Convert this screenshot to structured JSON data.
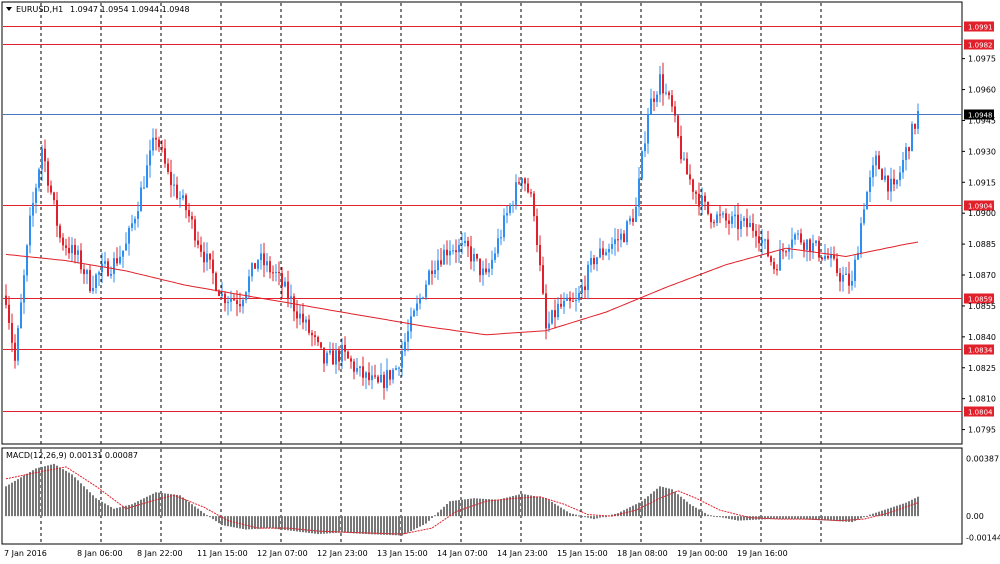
{
  "header": {
    "symbol_title": "EURUSD,H1",
    "ohlc": "1.0947 1.0954 1.0944 1.0948"
  },
  "macd_header": {
    "label": "MACD(12,26,9) 0.00131 0.00087"
  },
  "colors": {
    "bull": "#2f8ff0",
    "bear": "#e0202a",
    "ma": "#e0202a",
    "level": "#e0202a",
    "price_line": "#4a78c0",
    "macd_hist": "#777777",
    "macd_signal": "#e0202a",
    "grid": "#000000"
  },
  "chart_data": [
    {
      "type": "candlestick",
      "title": "",
      "ylim": [
        1.0788,
        1.1002
      ],
      "yticks": [
        "1.0975",
        "1.0960",
        "1.0945",
        "1.0930",
        "1.0915",
        "1.0900",
        "1.0885",
        "1.0870",
        "1.0855",
        "1.0840",
        "1.0825",
        "1.0810",
        "1.0795"
      ],
      "xticks": [
        "7 Jan 2016",
        "8 Jan 06:00",
        "8 Jan 22:00",
        "11 Jan 15:00",
        "12 Jan 07:00",
        "12 Jan 23:00",
        "13 Jan 15:00",
        "14 Jan 07:00",
        "14 Jan 23:00",
        "15 Jan 15:00",
        "18 Jan 08:00",
        "19 Jan 00:00",
        "19 Jan 16:00"
      ],
      "levels": [
        {
          "label": "1.0991",
          "value": 1.0991
        },
        {
          "label": "1.0982",
          "value": 1.0982
        },
        {
          "label": "1.0904",
          "value": 1.0904
        },
        {
          "label": "1.0859",
          "value": 1.0859
        },
        {
          "label": "1.0834",
          "value": 1.0834
        },
        {
          "label": "1.0804",
          "value": 1.0804
        }
      ],
      "current_price": {
        "label": "1.0948",
        "value": 1.0948
      },
      "close_path": [
        [
          0,
          1.086
        ],
        [
          3,
          1.0828
        ],
        [
          8,
          1.0895
        ],
        [
          12,
          1.0932
        ],
        [
          18,
          1.0888
        ],
        [
          24,
          1.0878
        ],
        [
          28,
          1.0866
        ],
        [
          32,
          1.0872
        ],
        [
          36,
          1.0876
        ],
        [
          40,
          1.0884
        ],
        [
          44,
          1.0905
        ],
        [
          50,
          1.0938
        ],
        [
          54,
          1.0918
        ],
        [
          60,
          1.0902
        ],
        [
          66,
          1.088
        ],
        [
          72,
          1.086
        ],
        [
          78,
          1.0858
        ],
        [
          84,
          1.0878
        ],
        [
          90,
          1.087
        ],
        [
          96,
          1.0855
        ],
        [
          102,
          1.084
        ],
        [
          106,
          1.0828
        ],
        [
          112,
          1.0832
        ],
        [
          118,
          1.0822
        ],
        [
          124,
          1.0816
        ],
        [
          130,
          1.0825
        ],
        [
          136,
          1.085
        ],
        [
          142,
          1.0875
        ],
        [
          148,
          1.0884
        ],
        [
          154,
          1.0882
        ],
        [
          160,
          1.0868
        ],
        [
          166,
          1.0895
        ],
        [
          172,
          1.092
        ],
        [
          176,
          1.0902
        ],
        [
          180,
          1.0843
        ],
        [
          184,
          1.0854
        ],
        [
          190,
          1.0856
        ],
        [
          196,
          1.0878
        ],
        [
          202,
          1.0885
        ],
        [
          206,
          1.089
        ],
        [
          210,
          1.0902
        ],
        [
          214,
          1.095
        ],
        [
          218,
          1.0965
        ],
        [
          222,
          1.095
        ],
        [
          226,
          1.0922
        ],
        [
          230,
          1.091
        ],
        [
          234,
          1.09
        ],
        [
          240,
          1.0896
        ],
        [
          246,
          1.0894
        ],
        [
          250,
          1.0893
        ],
        [
          256,
          1.0874
        ],
        [
          262,
          1.089
        ],
        [
          268,
          1.0885
        ],
        [
          274,
          1.0878
        ],
        [
          278,
          1.087
        ],
        [
          282,
          1.0865
        ],
        [
          286,
          1.0905
        ],
        [
          290,
          1.0925
        ],
        [
          296,
          1.091
        ],
        [
          300,
          1.093
        ],
        [
          304,
          1.0948
        ]
      ],
      "moving_average": [
        [
          0,
          1.088
        ],
        [
          20,
          1.0877
        ],
        [
          40,
          1.0872
        ],
        [
          60,
          1.0865
        ],
        [
          80,
          1.086
        ],
        [
          100,
          1.0855
        ],
        [
          120,
          1.085
        ],
        [
          140,
          1.0845
        ],
        [
          160,
          1.0841
        ],
        [
          180,
          1.0843
        ],
        [
          200,
          1.0852
        ],
        [
          220,
          1.0864
        ],
        [
          240,
          1.0875
        ],
        [
          260,
          1.0883
        ],
        [
          280,
          1.0879
        ],
        [
          300,
          1.0885
        ],
        [
          304,
          1.0886
        ]
      ]
    },
    {
      "type": "bar",
      "name": "MACD(12,26,9)",
      "ylim": [
        -0.0018,
        0.0045
      ],
      "yticks": [
        "0.00387",
        "0.00",
        "-0.00144"
      ],
      "macd_path": [
        [
          0,
          0.002
        ],
        [
          10,
          0.0032
        ],
        [
          16,
          0.0035
        ],
        [
          22,
          0.0028
        ],
        [
          30,
          0.0012
        ],
        [
          36,
          0.0005
        ],
        [
          42,
          0.0008
        ],
        [
          50,
          0.0016
        ],
        [
          58,
          0.0014
        ],
        [
          66,
          0.0002
        ],
        [
          72,
          -0.0006
        ],
        [
          80,
          -0.0009
        ],
        [
          88,
          -0.0008
        ],
        [
          96,
          -0.001
        ],
        [
          104,
          -0.0012
        ],
        [
          112,
          -0.0011
        ],
        [
          120,
          -0.0012
        ],
        [
          132,
          -0.0013
        ],
        [
          140,
          -0.0005
        ],
        [
          148,
          0.001
        ],
        [
          156,
          0.0012
        ],
        [
          164,
          0.0011
        ],
        [
          172,
          0.0015
        ],
        [
          180,
          0.0012
        ],
        [
          188,
          0.0002
        ],
        [
          196,
          -0.0002
        ],
        [
          204,
          0.0002
        ],
        [
          212,
          0.001
        ],
        [
          218,
          0.002
        ],
        [
          222,
          0.0018
        ],
        [
          228,
          0.0008
        ],
        [
          234,
          0.0001
        ],
        [
          244,
          -0.0003
        ],
        [
          254,
          -0.0002
        ],
        [
          264,
          -0.0002
        ],
        [
          274,
          -0.0003
        ],
        [
          282,
          -0.0004
        ],
        [
          288,
          0.0001
        ],
        [
          294,
          0.0005
        ],
        [
          300,
          0.0009
        ],
        [
          304,
          0.0013
        ]
      ],
      "signal_path": [
        [
          0,
          0.0025
        ],
        [
          12,
          0.003
        ],
        [
          20,
          0.0033
        ],
        [
          30,
          0.002
        ],
        [
          40,
          0.0005
        ],
        [
          50,
          0.0011
        ],
        [
          56,
          0.0014
        ],
        [
          66,
          0.0006
        ],
        [
          74,
          -0.0003
        ],
        [
          84,
          -0.0008
        ],
        [
          94,
          -0.0008
        ],
        [
          104,
          -0.001
        ],
        [
          116,
          -0.0011
        ],
        [
          132,
          -0.0012
        ],
        [
          142,
          -0.0008
        ],
        [
          150,
          0.0003
        ],
        [
          160,
          0.001
        ],
        [
          170,
          0.0012
        ],
        [
          178,
          0.0013
        ],
        [
          186,
          0.0008
        ],
        [
          194,
          0.0001
        ],
        [
          202,
          0.0
        ],
        [
          210,
          0.0004
        ],
        [
          218,
          0.0012
        ],
        [
          224,
          0.0017
        ],
        [
          230,
          0.0012
        ],
        [
          238,
          0.0004
        ],
        [
          248,
          -0.0001
        ],
        [
          258,
          -0.0002
        ],
        [
          268,
          -0.0002
        ],
        [
          278,
          -0.0003
        ],
        [
          286,
          -0.0002
        ],
        [
          294,
          0.0002
        ],
        [
          304,
          0.0009
        ]
      ]
    }
  ]
}
